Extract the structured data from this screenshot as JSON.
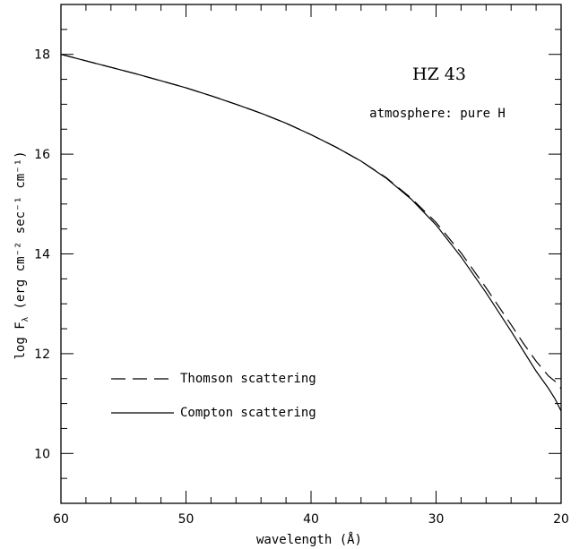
{
  "chart_data": {
    "type": "line",
    "xlabel": "wavelength (Å)",
    "ylabel_prefix": "log F",
    "ylabel_sub": "λ",
    "ylabel_suffix": " (erg cm⁻² sec⁻¹ cm⁻¹)",
    "xlim": [
      60,
      20
    ],
    "ylim": [
      9,
      19
    ],
    "x_reversed": true,
    "grid": false,
    "xticks": [
      60,
      50,
      40,
      30,
      20
    ],
    "yticks": [
      10,
      12,
      14,
      16,
      18
    ],
    "annotations": [
      {
        "text": "HZ 43"
      },
      {
        "text": "atmosphere: pure H"
      }
    ],
    "legend_position": "lower-left",
    "series": [
      {
        "name": "Thomson scattering",
        "style": "dashed",
        "x": [
          60,
          58,
          56,
          54,
          52,
          50,
          48,
          46,
          44,
          42,
          40,
          38,
          36,
          34,
          32,
          30,
          28,
          26,
          24,
          23,
          22,
          21,
          20.5,
          20
        ],
        "y": [
          18.0,
          17.87,
          17.74,
          17.61,
          17.47,
          17.33,
          17.17,
          17.0,
          16.82,
          16.62,
          16.39,
          16.14,
          15.86,
          15.53,
          15.12,
          14.63,
          14.02,
          13.32,
          12.58,
          12.2,
          11.85,
          11.55,
          11.45,
          11.3
        ]
      },
      {
        "name": "Compton scattering",
        "style": "solid",
        "x": [
          60,
          58,
          56,
          54,
          52,
          50,
          48,
          46,
          44,
          42,
          40,
          38,
          36,
          34,
          32,
          30,
          28,
          26,
          24,
          23,
          22,
          21,
          20.5,
          20
        ],
        "y": [
          18.0,
          17.87,
          17.74,
          17.61,
          17.47,
          17.33,
          17.17,
          17.0,
          16.82,
          16.62,
          16.39,
          16.14,
          15.86,
          15.52,
          15.1,
          14.58,
          13.94,
          13.22,
          12.45,
          12.05,
          11.65,
          11.3,
          11.1,
          10.85
        ]
      }
    ]
  }
}
